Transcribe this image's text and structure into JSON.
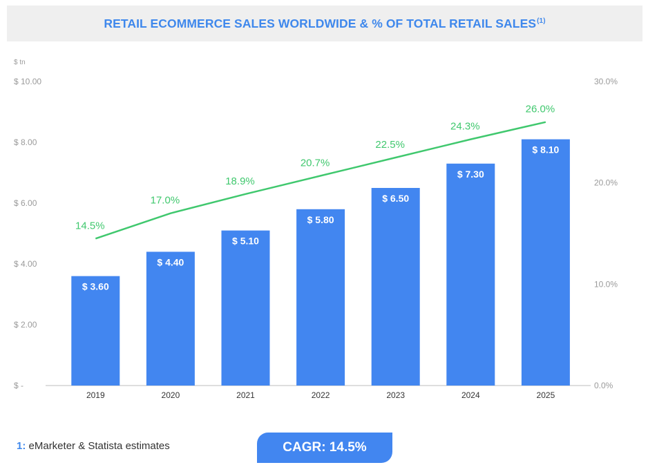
{
  "header": {
    "title": "RETAIL ECOMMERCE SALES WORLDWIDE & % OF TOTAL RETAIL SALES",
    "title_sup": "(1)"
  },
  "footnote": {
    "mark": "1:",
    "text": " eMarketer & Statista estimates"
  },
  "cagr_badge": {
    "label": "CAGR: 14.5%"
  },
  "colors": {
    "bar": "#4286f0",
    "line": "#40c86e",
    "title": "#3f88ec",
    "axis_text": "#9a9a9a"
  },
  "chart_data": {
    "type": "bar",
    "categories": [
      "2019",
      "2020",
      "2021",
      "2022",
      "2023",
      "2024",
      "2025"
    ],
    "series": [
      {
        "type": "bar",
        "axis": "left",
        "values": [
          3.6,
          4.4,
          5.1,
          5.8,
          6.5,
          7.3,
          8.1
        ],
        "labels": [
          "$ 3.60",
          "$ 4.40",
          "$ 5.10",
          "$ 5.80",
          "$ 6.50",
          "$ 7.30",
          "$ 8.10"
        ]
      },
      {
        "type": "line",
        "axis": "right",
        "values": [
          14.5,
          17.0,
          18.9,
          20.7,
          22.5,
          24.3,
          26.0
        ],
        "labels": [
          "14.5%",
          "17.0%",
          "18.9%",
          "20.7%",
          "22.5%",
          "24.3%",
          "26.0%"
        ]
      }
    ],
    "ylabel": "$ tn",
    "ylim": [
      0,
      10
    ],
    "y_ticks": [
      0,
      2,
      4,
      6,
      8,
      10
    ],
    "y_tick_labels": [
      "$ -",
      "$ 2.00",
      "$ 4.00",
      "$ 6.00",
      "$ 8.00",
      "$ 10.00"
    ],
    "y2lim": [
      0,
      30
    ],
    "y2_ticks": [
      0,
      10,
      20,
      30
    ],
    "y2_tick_labels": [
      "0.0%",
      "10.0%",
      "20.0%",
      "30.0%"
    ],
    "grid": false
  }
}
